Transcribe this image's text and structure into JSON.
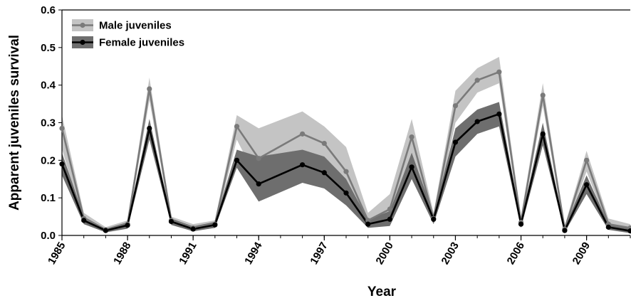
{
  "chart_data": {
    "type": "line",
    "title": "",
    "xlabel": "Year",
    "ylabel": "Apparent juveniles survival",
    "xlim": [
      1985,
      2011
    ],
    "ylim": [
      0,
      0.6
    ],
    "x_ticks": [
      1985,
      1988,
      1991,
      1994,
      1997,
      2000,
      2003,
      2006,
      2009
    ],
    "y_ticks": [
      "0.0",
      "0.1",
      "0.2",
      "0.3",
      "0.4",
      "0.5",
      "0.6"
    ],
    "grid": false,
    "legend_position": "top-left",
    "series": [
      {
        "name": "Male juveniles",
        "line_color": "#7a7a7a",
        "band_color": "#c4c4c4",
        "x": [
          1985,
          1986,
          1987,
          1988,
          1989,
          1990,
          1991,
          1992,
          1993,
          1994,
          1996,
          1997,
          1998,
          1999,
          2000,
          2001,
          2002,
          2003,
          2004,
          2005,
          2006,
          2007,
          2008,
          2009,
          2010,
          2011
        ],
        "values": [
          0.285,
          0.045,
          0.015,
          0.03,
          0.39,
          0.04,
          0.02,
          0.03,
          0.29,
          0.205,
          0.27,
          0.245,
          0.17,
          0.04,
          0.07,
          0.262,
          0.045,
          0.345,
          0.413,
          0.435,
          0.035,
          0.373,
          0.017,
          0.2,
          0.03,
          0.02
        ],
        "lower": [
          0.23,
          0.03,
          0.01,
          0.02,
          0.36,
          0.03,
          0.012,
          0.02,
          0.255,
          0.14,
          0.22,
          0.2,
          0.12,
          0.025,
          0.04,
          0.215,
          0.03,
          0.3,
          0.38,
          0.405,
          0.025,
          0.345,
          0.01,
          0.17,
          0.02,
          0.01
        ],
        "upper": [
          0.32,
          0.06,
          0.022,
          0.04,
          0.42,
          0.05,
          0.03,
          0.04,
          0.32,
          0.285,
          0.33,
          0.29,
          0.235,
          0.06,
          0.11,
          0.31,
          0.06,
          0.385,
          0.445,
          0.475,
          0.05,
          0.405,
          0.025,
          0.225,
          0.045,
          0.03
        ]
      },
      {
        "name": "Female juveniles",
        "line_color": "#000000",
        "band_color": "#6e6e6e",
        "x": [
          1985,
          1986,
          1987,
          1988,
          1989,
          1990,
          1991,
          1992,
          1993,
          1994,
          1996,
          1997,
          1998,
          1999,
          2000,
          2001,
          2002,
          2003,
          2004,
          2005,
          2006,
          2007,
          2008,
          2009,
          2010,
          2011
        ],
        "values": [
          0.19,
          0.04,
          0.013,
          0.027,
          0.285,
          0.037,
          0.017,
          0.028,
          0.2,
          0.137,
          0.188,
          0.167,
          0.113,
          0.03,
          0.043,
          0.182,
          0.043,
          0.248,
          0.303,
          0.323,
          0.03,
          0.27,
          0.013,
          0.135,
          0.022,
          0.012
        ],
        "lower": [
          0.16,
          0.03,
          0.008,
          0.018,
          0.255,
          0.028,
          0.011,
          0.02,
          0.18,
          0.09,
          0.14,
          0.125,
          0.08,
          0.02,
          0.025,
          0.15,
          0.03,
          0.21,
          0.27,
          0.29,
          0.02,
          0.24,
          0.008,
          0.11,
          0.015,
          0.006
        ],
        "upper": [
          0.22,
          0.05,
          0.018,
          0.035,
          0.31,
          0.045,
          0.024,
          0.036,
          0.228,
          0.21,
          0.228,
          0.21,
          0.15,
          0.042,
          0.065,
          0.22,
          0.055,
          0.285,
          0.335,
          0.355,
          0.04,
          0.3,
          0.02,
          0.16,
          0.03,
          0.02
        ]
      }
    ]
  }
}
